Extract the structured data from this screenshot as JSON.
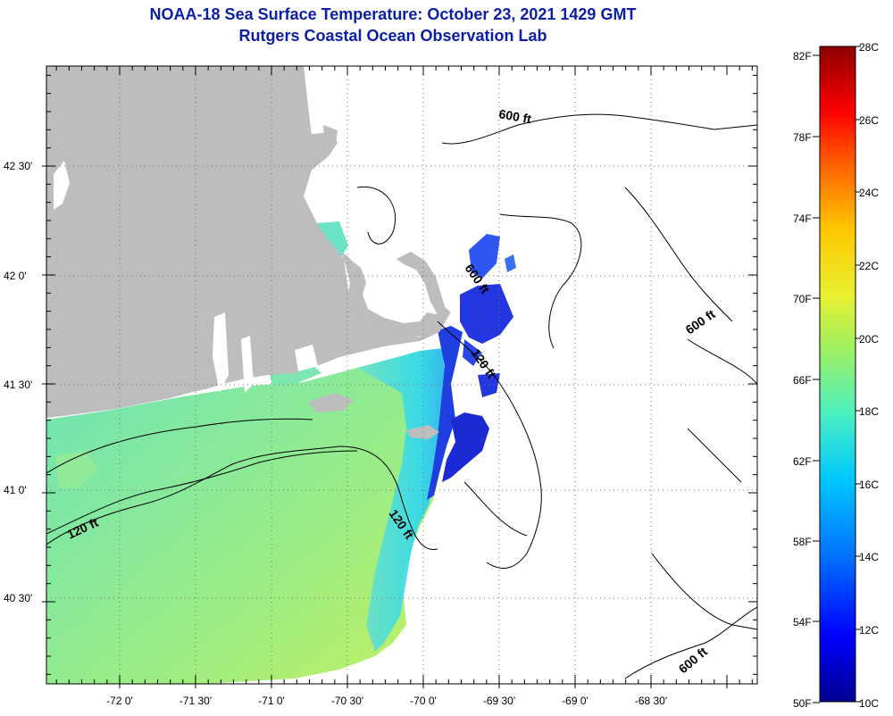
{
  "title": {
    "line1": "NOAA-18 Sea Surface Temperature:  October 23, 2021 1429 GMT",
    "line2": "Rutgers Coastal Ocean Observation Lab"
  },
  "axes": {
    "latitude_labels": [
      "42 30'",
      "42 0'",
      "41 30'",
      "41 0'",
      "40 30'"
    ],
    "longitude_labels": [
      "-72 0'",
      "-71 30'",
      "-71 0'",
      "-70 30'",
      "-70 0'",
      "-69 30'",
      "-69 0'",
      "-68 30'"
    ]
  },
  "colorbar": {
    "fahrenheit_labels": [
      "82F",
      "78F",
      "74F",
      "70F",
      "66F",
      "62F",
      "58F",
      "54F",
      "50F"
    ],
    "celsius_labels": [
      "28C",
      "26C",
      "24C",
      "22C",
      "20C",
      "18C",
      "16C",
      "14C",
      "12C",
      "10C"
    ],
    "colors": [
      "#00008f",
      "#0000ff",
      "#0070ff",
      "#00c8ff",
      "#4cf0c0",
      "#a0f060",
      "#e8f030",
      "#ffc800",
      "#ff6000",
      "#ff0000",
      "#8b0000"
    ]
  },
  "contours": {
    "labels": [
      "600 ft",
      "600 ft",
      "600 ft",
      "600 ft",
      "120 ft",
      "120 ft",
      "120 ft"
    ]
  },
  "colors": {
    "land": "#bdbdbd",
    "title": "#0b1fa6",
    "cold": "#1f2fd8",
    "cool": "#2fa6f0",
    "mid": "#5fe0c8",
    "warm": "#a6f07a"
  }
}
